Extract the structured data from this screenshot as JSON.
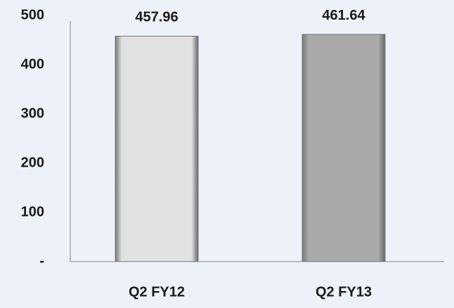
{
  "chart_data": {
    "type": "bar",
    "categories": [
      "Q2 FY12",
      "Q2 FY13"
    ],
    "values": [
      457.96,
      461.64
    ],
    "colors": [
      "#e2e2e2",
      "#aaaaaa"
    ],
    "ylim": [
      0,
      500
    ],
    "yticks": [
      {
        "value": 0,
        "label": "-"
      },
      100,
      200,
      300,
      400,
      500
    ],
    "grid": false
  }
}
